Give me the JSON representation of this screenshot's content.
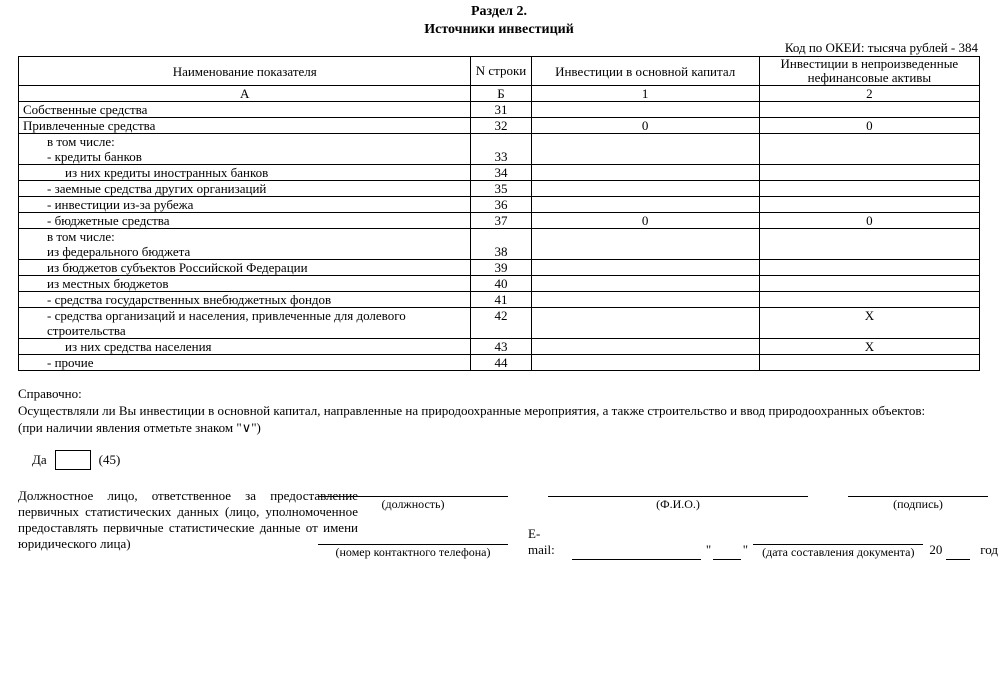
{
  "title_line1": "Раздел 2.",
  "title_line2": "Источники инвестиций",
  "okei_text": "Код по ОКЕИ: тысяча рублей - 384",
  "table": {
    "headers": {
      "name": "Наименование показателя",
      "rownum": "N строки",
      "col1": "Инвестиции в основной капитал",
      "col2": "Инвестиции в непроизведенные нефинансовые активы",
      "sub_A": "А",
      "sub_B": "Б",
      "sub_1": "1",
      "sub_2": "2"
    },
    "rows": [
      {
        "label": "Собственные средства",
        "indent": 0,
        "n": "31",
        "c1": "",
        "c2": ""
      },
      {
        "label": "Привлеченные средства",
        "indent": 0,
        "n": "32",
        "c1": "0",
        "c2": "0"
      },
      {
        "label": "в том числе:",
        "indent": 1,
        "n": "",
        "c1": "",
        "c2": "",
        "open": true
      },
      {
        "label": "- кредиты банков",
        "indent": 1,
        "n": "33",
        "c1": "",
        "c2": "",
        "open_top": true
      },
      {
        "label": "из них кредиты иностранных банков",
        "indent": 2,
        "n": "34",
        "c1": "",
        "c2": ""
      },
      {
        "label": "- заемные средства других организаций",
        "indent": 1,
        "n": "35",
        "c1": "",
        "c2": ""
      },
      {
        "label": "- инвестиции из-за рубежа",
        "indent": 1,
        "n": "36",
        "c1": "",
        "c2": ""
      },
      {
        "label": "- бюджетные средства",
        "indent": 1,
        "n": "37",
        "c1": "0",
        "c2": "0"
      },
      {
        "label": "в том числе:",
        "indent": 1,
        "n": "",
        "c1": "",
        "c2": "",
        "open": true
      },
      {
        "label": "из федерального бюджета",
        "indent": 1,
        "n": "38",
        "c1": "",
        "c2": "",
        "open_top": true
      },
      {
        "label": "из бюджетов субъектов Российской Федерации",
        "indent": 1,
        "n": "39",
        "c1": "",
        "c2": ""
      },
      {
        "label": "из местных бюджетов",
        "indent": 1,
        "n": "40",
        "c1": "",
        "c2": ""
      },
      {
        "label": "- средства государственных внебюджетных фондов",
        "indent": 1,
        "n": "41",
        "c1": "",
        "c2": ""
      },
      {
        "label": "- средства организаций и населения, привлеченные для долевого строительства",
        "indent": 1,
        "n": "42",
        "c1": "",
        "c2": "X"
      },
      {
        "label": "из них средства населения",
        "indent": 2,
        "n": "43",
        "c1": "",
        "c2": "X"
      },
      {
        "label": "- прочие",
        "indent": 1,
        "n": "44",
        "c1": "",
        "c2": ""
      }
    ]
  },
  "notes": {
    "line1": "Справочно:",
    "line2": "Осуществляли ли Вы инвестиции в основной капитал, направленные на природоохранные мероприятия, а также строительство и ввод природоохранных объектов:",
    "line3": "(при наличии явления отметьте знаком \"∨\")"
  },
  "da": {
    "label": "Да",
    "code": "(45)"
  },
  "responsible": "Должностное лицо, ответственное за предоставление первичных статистических данных (лицо, уполномоченное предоставлять первичные статистические данные от имени юридического лица)",
  "sig": {
    "position": "(должность)",
    "fio": "(Ф.И.О.)",
    "sign": "(подпись)",
    "phone": "(номер контактного телефона)",
    "email": "E-mail:",
    "datecap": "(дата составления документа)",
    "year_prefix": "20",
    "year_suffix": "год"
  }
}
